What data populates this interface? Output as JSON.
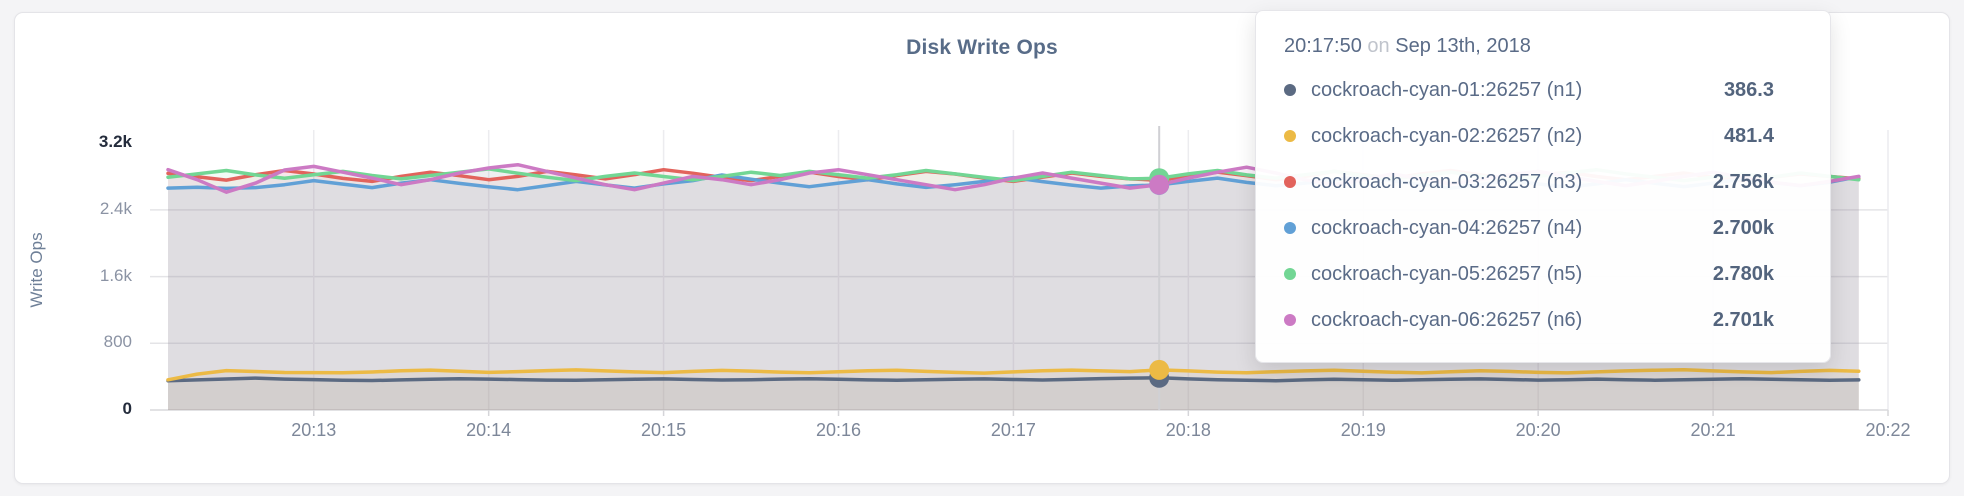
{
  "chart": {
    "title": "Disk Write Ops",
    "y_axis": {
      "label": "Write Ops",
      "ticks": [
        {
          "label": "0",
          "value": 0,
          "emphasis": true
        },
        {
          "label": "800",
          "value": 800,
          "emphasis": false
        },
        {
          "label": "1.6k",
          "value": 1600,
          "emphasis": false
        },
        {
          "label": "2.4k",
          "value": 2400,
          "emphasis": false
        },
        {
          "label": "3.2k",
          "value": 3200,
          "emphasis": true
        }
      ]
    },
    "x_axis": {
      "ticks": [
        "20:13",
        "20:14",
        "20:15",
        "20:16",
        "20:17",
        "20:18",
        "20:19",
        "20:20",
        "20:21",
        "20:22"
      ]
    }
  },
  "tooltip": {
    "time": "20:17:50",
    "conjunction": "on",
    "date": "Sep 13th, 2018",
    "rows": [
      {
        "name": "cockroach-cyan-01:26257 (n1)",
        "value": "386.3",
        "color": "#5b6a82"
      },
      {
        "name": "cockroach-cyan-02:26257 (n2)",
        "value": "481.4",
        "color": "#ecba45"
      },
      {
        "name": "cockroach-cyan-03:26257 (n3)",
        "value": "2.756k",
        "color": "#e2635c"
      },
      {
        "name": "cockroach-cyan-04:26257 (n4)",
        "value": "2.700k",
        "color": "#61a0d6"
      },
      {
        "name": "cockroach-cyan-05:26257 (n5)",
        "value": "2.780k",
        "color": "#72d694"
      },
      {
        "name": "cockroach-cyan-06:26257 (n6)",
        "value": "2.701k",
        "color": "#cc7ac4"
      }
    ]
  },
  "chart_data": {
    "type": "line",
    "title": "Disk Write Ops",
    "xlabel": "",
    "ylabel": "Write Ops",
    "ylim": [
      0,
      3200
    ],
    "grid": true,
    "legend_position": "tooltip-overlay",
    "x_start": "20:12:10",
    "x_step_seconds": 10,
    "x_ticks": [
      "20:13",
      "20:14",
      "20:15",
      "20:16",
      "20:17",
      "20:18",
      "20:19",
      "20:20",
      "20:21",
      "20:22"
    ],
    "hover": {
      "time": "20:17:50",
      "date": "Sep 13th, 2018",
      "index": 34
    },
    "series": [
      {
        "id": "n1",
        "name": "cockroach-cyan-01:26257 (n1)",
        "color": "#5b6a82",
        "values": [
          352,
          361,
          372,
          383,
          371,
          365,
          358,
          354,
          361,
          369,
          375,
          371,
          365,
          359,
          356,
          363,
          369,
          373,
          366,
          360,
          364,
          371,
          375,
          368,
          361,
          357,
          363,
          369,
          373,
          366,
          360,
          367,
          377,
          383,
          386.3,
          373,
          363,
          356,
          352,
          361,
          369,
          362,
          356,
          362,
          368,
          373,
          366,
          359,
          364,
          371,
          364,
          357,
          363,
          369,
          375,
          370,
          362,
          356,
          361
        ]
      },
      {
        "id": "n2",
        "name": "cockroach-cyan-02:26257 (n2)",
        "color": "#ecba45",
        "values": [
          362,
          430,
          472,
          462,
          450,
          448,
          447,
          456,
          471,
          479,
          465,
          451,
          461,
          473,
          481,
          469,
          457,
          449,
          463,
          475,
          467,
          455,
          447,
          459,
          471,
          477,
          463,
          451,
          443,
          457,
          471,
          479,
          469,
          461,
          481.4,
          469,
          455,
          447,
          459,
          469,
          477,
          465,
          453,
          445,
          459,
          471,
          463,
          451,
          445,
          457,
          469,
          477,
          483,
          469,
          457,
          449,
          463,
          475,
          465
        ]
      },
      {
        "id": "n3",
        "name": "cockroach-cyan-03:26257 (n3)",
        "color": "#e2635c",
        "values": [
          2838,
          2798,
          2758,
          2822,
          2872,
          2830,
          2778,
          2742,
          2802,
          2852,
          2810,
          2762,
          2802,
          2862,
          2820,
          2772,
          2822,
          2882,
          2840,
          2790,
          2752,
          2802,
          2852,
          2800,
          2760,
          2812,
          2862,
          2830,
          2780,
          2742,
          2792,
          2842,
          2802,
          2772,
          2756,
          2802,
          2852,
          2810,
          2762,
          2802,
          2862,
          2822,
          2780,
          2832,
          2872,
          2820,
          2772,
          2812,
          2852,
          2800,
          2762,
          2802,
          2842,
          2790,
          2752,
          2792,
          2832,
          2800,
          2772
        ]
      },
      {
        "id": "n4",
        "name": "cockroach-cyan-04:26257 (n4)",
        "color": "#61a0d6",
        "values": [
          2662,
          2672,
          2658,
          2668,
          2702,
          2752,
          2710,
          2668,
          2722,
          2762,
          2718,
          2678,
          2642,
          2692,
          2742,
          2700,
          2662,
          2712,
          2752,
          2818,
          2768,
          2720,
          2678,
          2722,
          2762,
          2712,
          2670,
          2702,
          2742,
          2788,
          2740,
          2698,
          2662,
          2688,
          2700,
          2742,
          2782,
          2730,
          2690,
          2722,
          2762,
          2802,
          2750,
          2702,
          2662,
          2702,
          2752,
          2712,
          2672,
          2712,
          2762,
          2720,
          2680,
          2722,
          2772,
          2730,
          2692,
          2732,
          2798
        ]
      },
      {
        "id": "n5",
        "name": "cockroach-cyan-05:26257 (n5)",
        "color": "#72d694",
        "values": [
          2792,
          2832,
          2872,
          2820,
          2780,
          2822,
          2862,
          2812,
          2772,
          2812,
          2852,
          2892,
          2840,
          2792,
          2752,
          2802,
          2842,
          2800,
          2762,
          2802,
          2852,
          2812,
          2862,
          2822,
          2782,
          2822,
          2872,
          2832,
          2790,
          2752,
          2802,
          2852,
          2812,
          2772,
          2780,
          2832,
          2872,
          2820,
          2782,
          2822,
          2862,
          2812,
          2772,
          2812,
          2852,
          2802,
          2762,
          2802,
          2842,
          2882,
          2832,
          2792,
          2752,
          2792,
          2832,
          2792,
          2842,
          2802,
          2762
        ]
      },
      {
        "id": "n6",
        "name": "cockroach-cyan-06:26257 (n6)",
        "color": "#cc7ac4",
        "values": [
          2882,
          2762,
          2612,
          2722,
          2878,
          2922,
          2852,
          2782,
          2702,
          2762,
          2842,
          2902,
          2942,
          2862,
          2782,
          2702,
          2642,
          2722,
          2802,
          2762,
          2702,
          2762,
          2842,
          2882,
          2822,
          2762,
          2702,
          2642,
          2702,
          2782,
          2842,
          2782,
          2722,
          2662,
          2701,
          2782,
          2852,
          2912,
          2842,
          2762,
          2702,
          2762,
          2832,
          2772,
          2712,
          2762,
          2822,
          2862,
          2802,
          2742,
          2692,
          2742,
          2802,
          2852,
          2792,
          2732,
          2692,
          2742,
          2802
        ]
      }
    ]
  }
}
